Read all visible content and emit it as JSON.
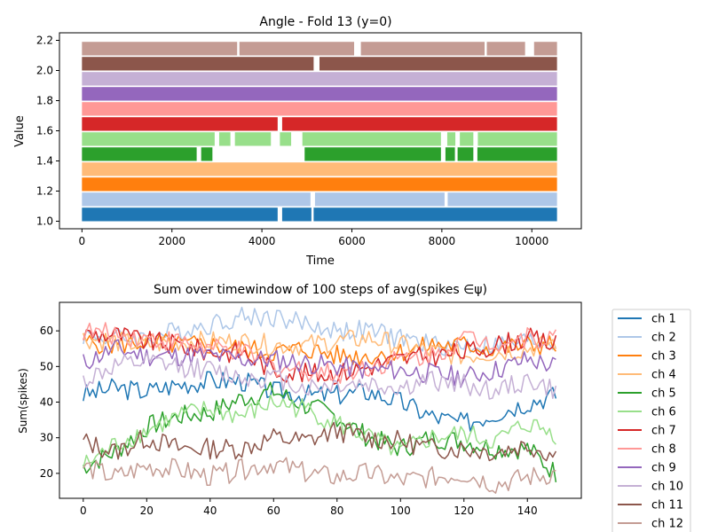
{
  "chart_data": [
    {
      "type": "scatter",
      "title": "Angle - Fold 13 (y=0)",
      "xlabel": "Time",
      "ylabel": "Value",
      "xlim": [
        -500,
        11100
      ],
      "ylim": [
        0.95,
        2.25
      ],
      "xticks": [
        0,
        2000,
        4000,
        6000,
        8000,
        10000
      ],
      "xtick_labels": [
        "0",
        "2000",
        "4000",
        "6000",
        "8000",
        "10000"
      ],
      "yticks": [
        1.0,
        1.2,
        1.4,
        1.6,
        1.8,
        2.0,
        2.2
      ],
      "ytick_labels": [
        "1.0",
        "1.2",
        "1.4",
        "1.6",
        "1.8",
        "2.0",
        "2.2"
      ],
      "grid": false,
      "series": [
        {
          "color": "#1f77b4",
          "y_range": [
            1.0,
            1.09
          ],
          "segments": [
            [
              0,
              4350
            ],
            [
              4450,
              5100
            ],
            [
              5150,
              10560
            ]
          ]
        },
        {
          "color": "#aec7e8",
          "y_range": [
            1.1,
            1.19
          ],
          "segments": [
            [
              0,
              5080
            ],
            [
              5180,
              8060
            ],
            [
              8130,
              10560
            ]
          ]
        },
        {
          "color": "#ff7f0e",
          "y_range": [
            1.2,
            1.29
          ],
          "segments": [
            [
              0,
              10560
            ]
          ]
        },
        {
          "color": "#ffbb78",
          "y_range": [
            1.3,
            1.39
          ],
          "segments": [
            [
              0,
              10560
            ]
          ]
        },
        {
          "color": "#2ca02c",
          "y_range": [
            1.4,
            1.49
          ],
          "segments": [
            [
              0,
              2550
            ],
            [
              2650,
              2900
            ],
            [
              4950,
              7980
            ],
            [
              8080,
              8290
            ],
            [
              8350,
              8700
            ],
            [
              8790,
              10560
            ]
          ]
        },
        {
          "color": "#98df8a",
          "y_range": [
            1.5,
            1.59
          ],
          "segments": [
            [
              0,
              2950
            ],
            [
              3050,
              3300
            ],
            [
              3400,
              4200
            ],
            [
              4400,
              4650
            ],
            [
              4900,
              7980
            ],
            [
              8120,
              8300
            ],
            [
              8400,
              8700
            ],
            [
              8800,
              10560
            ]
          ]
        },
        {
          "color": "#d62728",
          "y_range": [
            1.6,
            1.69
          ],
          "segments": [
            [
              0,
              4350
            ],
            [
              4450,
              10560
            ]
          ]
        },
        {
          "color": "#ff9896",
          "y_range": [
            1.7,
            1.79
          ],
          "segments": [
            [
              0,
              10560
            ]
          ]
        },
        {
          "color": "#9467bd",
          "y_range": [
            1.8,
            1.89
          ],
          "segments": [
            [
              0,
              10560
            ]
          ]
        },
        {
          "color": "#c5b0d5",
          "y_range": [
            1.9,
            1.99
          ],
          "segments": [
            [
              0,
              10560
            ]
          ]
        },
        {
          "color": "#8c564b",
          "y_range": [
            2.0,
            2.09
          ],
          "segments": [
            [
              0,
              5150
            ],
            [
              5280,
              10560
            ]
          ]
        },
        {
          "color": "#c49c94",
          "y_range": [
            2.1,
            2.19
          ],
          "segments": [
            [
              0,
              3450
            ],
            [
              3500,
              6050
            ],
            [
              6200,
              8950
            ],
            [
              9000,
              9850
            ],
            [
              10050,
              10560
            ]
          ]
        }
      ]
    },
    {
      "type": "line",
      "title": "Sum over timewindow of 100 steps of avg(spikes ∈ψ)",
      "xlabel": "",
      "ylabel": "Sum(spikes)",
      "xlim": [
        -7.5,
        157
      ],
      "ylim": [
        13,
        68
      ],
      "xticks": [
        0,
        20,
        40,
        60,
        80,
        100,
        120,
        140
      ],
      "xtick_labels": [
        "0",
        "20",
        "40",
        "60",
        "80",
        "100",
        "120",
        "140"
      ],
      "yticks": [
        20,
        30,
        40,
        50,
        60
      ],
      "ytick_labels": [
        "20",
        "30",
        "40",
        "50",
        "60"
      ],
      "grid": false,
      "legend_position": "outside-right",
      "x_count": 150,
      "series": [
        {
          "name": "ch 1",
          "color": "#1f77b4",
          "knots": [
            [
              0,
              42
            ],
            [
              10,
              44
            ],
            [
              20,
              43
            ],
            [
              30,
              45
            ],
            [
              40,
              46
            ],
            [
              50,
              46
            ],
            [
              60,
              43
            ],
            [
              70,
              42
            ],
            [
              80,
              42
            ],
            [
              90,
              43
            ],
            [
              100,
              40
            ],
            [
              110,
              36
            ],
            [
              120,
              34
            ],
            [
              130,
              37
            ],
            [
              140,
              40
            ],
            [
              149,
              42
            ]
          ]
        },
        {
          "name": "ch 2",
          "color": "#aec7e8",
          "knots": [
            [
              0,
              59
            ],
            [
              10,
              58
            ],
            [
              20,
              58
            ],
            [
              30,
              60
            ],
            [
              40,
              62
            ],
            [
              50,
              64
            ],
            [
              60,
              64
            ],
            [
              70,
              62
            ],
            [
              80,
              60
            ],
            [
              90,
              60
            ],
            [
              100,
              58
            ],
            [
              110,
              56
            ],
            [
              120,
              56
            ],
            [
              130,
              56
            ],
            [
              140,
              57
            ],
            [
              149,
              57
            ]
          ]
        },
        {
          "name": "ch 3",
          "color": "#ff7f0e",
          "knots": [
            [
              0,
              57
            ],
            [
              10,
              56
            ],
            [
              20,
              57
            ],
            [
              30,
              56
            ],
            [
              40,
              56
            ],
            [
              50,
              55
            ],
            [
              60,
              54
            ],
            [
              70,
              55
            ],
            [
              80,
              53
            ],
            [
              90,
              53
            ],
            [
              100,
              54
            ],
            [
              110,
              56
            ],
            [
              120,
              56
            ],
            [
              130,
              55
            ],
            [
              140,
              56
            ],
            [
              149,
              56
            ]
          ]
        },
        {
          "name": "ch 4",
          "color": "#ffbb78",
          "knots": [
            [
              0,
              58
            ],
            [
              10,
              57
            ],
            [
              20,
              56
            ],
            [
              30,
              57
            ],
            [
              40,
              57
            ],
            [
              50,
              57
            ],
            [
              60,
              56
            ],
            [
              70,
              56
            ],
            [
              80,
              57
            ],
            [
              90,
              58
            ],
            [
              100,
              56
            ],
            [
              110,
              54
            ],
            [
              120,
              53
            ],
            [
              130,
              54
            ],
            [
              140,
              55
            ],
            [
              149,
              57
            ]
          ]
        },
        {
          "name": "ch 5",
          "color": "#2ca02c",
          "knots": [
            [
              0,
              22
            ],
            [
              10,
              26
            ],
            [
              20,
              33
            ],
            [
              30,
              36
            ],
            [
              40,
              37
            ],
            [
              50,
              41
            ],
            [
              60,
              43
            ],
            [
              70,
              39
            ],
            [
              80,
              36
            ],
            [
              90,
              30
            ],
            [
              100,
              27
            ],
            [
              110,
              30
            ],
            [
              120,
              29
            ],
            [
              130,
              27
            ],
            [
              140,
              27
            ],
            [
              149,
              20
            ]
          ]
        },
        {
          "name": "ch 6",
          "color": "#98df8a",
          "knots": [
            [
              0,
              22
            ],
            [
              10,
              28
            ],
            [
              20,
              32
            ],
            [
              30,
              36
            ],
            [
              40,
              38
            ],
            [
              50,
              36
            ],
            [
              60,
              40
            ],
            [
              70,
              38
            ],
            [
              80,
              34
            ],
            [
              90,
              30
            ],
            [
              100,
              26
            ],
            [
              110,
              30
            ],
            [
              120,
              31
            ],
            [
              130,
              29
            ],
            [
              140,
              34
            ],
            [
              149,
              31
            ]
          ]
        },
        {
          "name": "ch 7",
          "color": "#d62728",
          "knots": [
            [
              0,
              59
            ],
            [
              10,
              59
            ],
            [
              20,
              57
            ],
            [
              30,
              56
            ],
            [
              40,
              54
            ],
            [
              50,
              54
            ],
            [
              60,
              49
            ],
            [
              70,
              48
            ],
            [
              80,
              48
            ],
            [
              90,
              50
            ],
            [
              100,
              52
            ],
            [
              110,
              53
            ],
            [
              120,
              54
            ],
            [
              130,
              56
            ],
            [
              140,
              58
            ],
            [
              149,
              56
            ]
          ]
        },
        {
          "name": "ch 8",
          "color": "#ff9896",
          "knots": [
            [
              0,
              60
            ],
            [
              10,
              59
            ],
            [
              20,
              58
            ],
            [
              30,
              57
            ],
            [
              40,
              55
            ],
            [
              50,
              54
            ],
            [
              60,
              50
            ],
            [
              70,
              49
            ],
            [
              80,
              48
            ],
            [
              90,
              50
            ],
            [
              100,
              52
            ],
            [
              110,
              53
            ],
            [
              120,
              58
            ],
            [
              130,
              57
            ],
            [
              140,
              58
            ],
            [
              149,
              58
            ]
          ]
        },
        {
          "name": "ch 9",
          "color": "#9467bd",
          "knots": [
            [
              0,
              51
            ],
            [
              10,
              55
            ],
            [
              20,
              53
            ],
            [
              30,
              53
            ],
            [
              40,
              53
            ],
            [
              50,
              52
            ],
            [
              60,
              52
            ],
            [
              70,
              51
            ],
            [
              80,
              50
            ],
            [
              90,
              49
            ],
            [
              100,
              49
            ],
            [
              110,
              48
            ],
            [
              120,
              47
            ],
            [
              130,
              49
            ],
            [
              140,
              52
            ],
            [
              149,
              50
            ]
          ]
        },
        {
          "name": "ch 10",
          "color": "#c5b0d5",
          "knots": [
            [
              0,
              46
            ],
            [
              10,
              50
            ],
            [
              20,
              51
            ],
            [
              30,
              50
            ],
            [
              40,
              49
            ],
            [
              50,
              47
            ],
            [
              60,
              47
            ],
            [
              70,
              44
            ],
            [
              80,
              45
            ],
            [
              90,
              45
            ],
            [
              100,
              44
            ],
            [
              110,
              46
            ],
            [
              120,
              45
            ],
            [
              130,
              43
            ],
            [
              140,
              46
            ],
            [
              149,
              43
            ]
          ]
        },
        {
          "name": "ch 11",
          "color": "#8c564b",
          "knots": [
            [
              0,
              29
            ],
            [
              10,
              26
            ],
            [
              20,
              30
            ],
            [
              30,
              27
            ],
            [
              40,
              27
            ],
            [
              50,
              27
            ],
            [
              60,
              30
            ],
            [
              70,
              29
            ],
            [
              80,
              32
            ],
            [
              90,
              30
            ],
            [
              100,
              29
            ],
            [
              110,
              27
            ],
            [
              120,
              27
            ],
            [
              130,
              26
            ],
            [
              140,
              28
            ],
            [
              149,
              25
            ]
          ]
        },
        {
          "name": "ch 12",
          "color": "#c49c94",
          "knots": [
            [
              0,
              22
            ],
            [
              10,
              19
            ],
            [
              20,
              22
            ],
            [
              30,
              21
            ],
            [
              40,
              19
            ],
            [
              50,
              21
            ],
            [
              60,
              23
            ],
            [
              70,
              20
            ],
            [
              80,
              19
            ],
            [
              90,
              20
            ],
            [
              100,
              18
            ],
            [
              110,
              19
            ],
            [
              120,
              20
            ],
            [
              130,
              17
            ],
            [
              140,
              19
            ],
            [
              149,
              20
            ]
          ]
        }
      ]
    }
  ]
}
